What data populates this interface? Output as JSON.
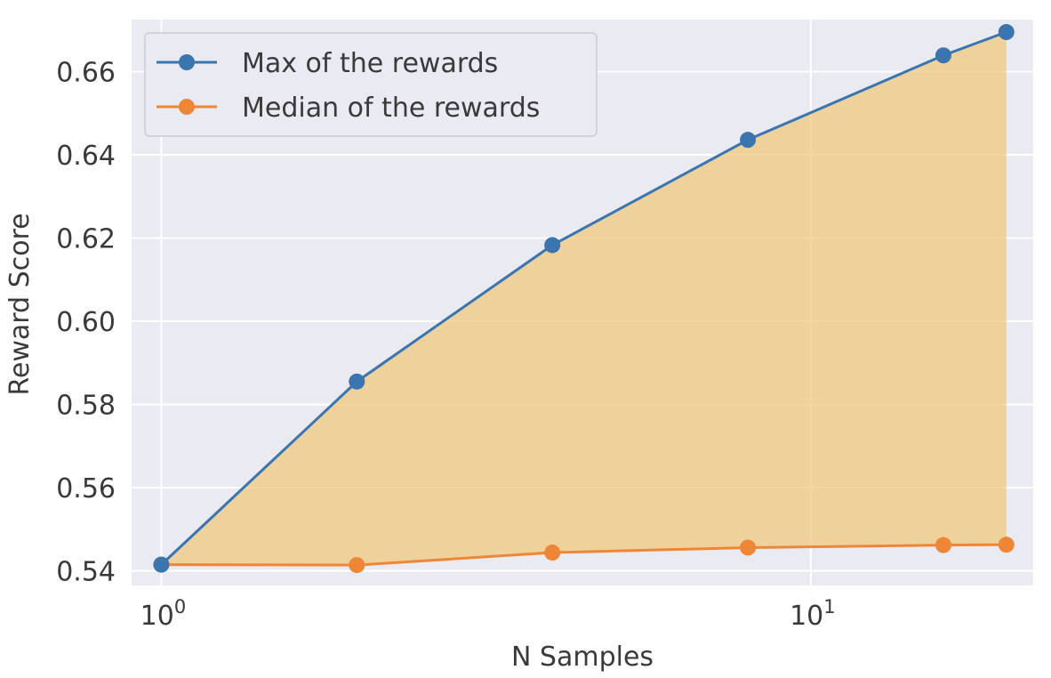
{
  "chart_data": {
    "type": "line",
    "x_scale": "log",
    "x": [
      1,
      2,
      4,
      8,
      16,
      20
    ],
    "series": [
      {
        "name": "Max of the rewards",
        "color": "#3b75af",
        "values": [
          0.5415,
          0.5855,
          0.6183,
          0.6436,
          0.6639,
          0.6695
        ]
      },
      {
        "name": "Median of the rewards",
        "color": "#ef8636",
        "values": [
          0.5415,
          0.5414,
          0.5444,
          0.5456,
          0.5462,
          0.5463
        ]
      }
    ],
    "fill_between": {
      "series": [
        "Max of the rewards",
        "Median of the rewards"
      ],
      "color": "#f0c878"
    },
    "xlabel": "N Samples",
    "ylabel": "Reward Score",
    "xlim": [
      0.9,
      22
    ],
    "ylim": [
      0.5365,
      0.6725
    ],
    "x_ticks": [
      {
        "value": 1,
        "base": "10",
        "exp": "0"
      },
      {
        "value": 10,
        "base": "10",
        "exp": "1"
      }
    ],
    "y_ticks": [
      {
        "value": 0.54,
        "label": "0.54"
      },
      {
        "value": 0.56,
        "label": "0.56"
      },
      {
        "value": 0.58,
        "label": "0.58"
      },
      {
        "value": 0.6,
        "label": "0.60"
      },
      {
        "value": 0.62,
        "label": "0.62"
      },
      {
        "value": 0.64,
        "label": "0.64"
      },
      {
        "value": 0.66,
        "label": "0.66"
      }
    ],
    "grid": true,
    "background": "#eaeaf2",
    "legend": "top-left"
  }
}
